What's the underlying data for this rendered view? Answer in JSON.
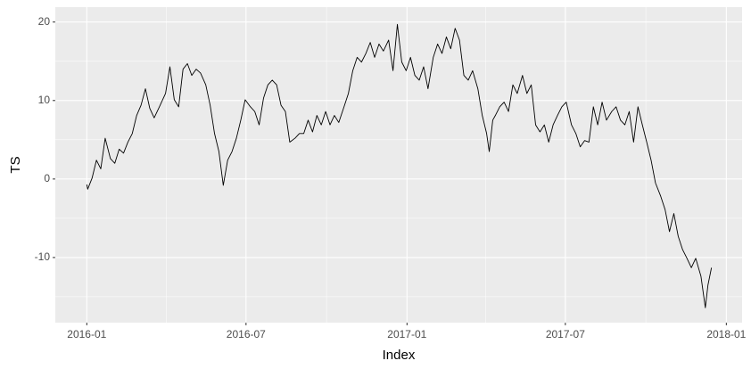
{
  "chart_data": {
    "type": "line",
    "x_label": "Index",
    "y_label": "TS",
    "color": "#000000",
    "grid": true,
    "x": [
      0,
      1,
      6,
      11,
      16,
      21,
      27,
      32,
      37,
      42,
      47,
      52,
      57,
      62,
      67,
      72,
      77,
      83,
      90,
      95,
      100,
      105,
      110,
      115,
      120,
      125,
      130,
      136,
      141,
      146,
      151,
      156,
      161,
      166,
      171,
      176,
      181,
      187,
      192,
      197,
      202,
      207,
      212,
      217,
      222,
      227,
      232,
      238,
      243,
      248,
      253,
      258,
      263,
      268,
      273,
      278,
      283,
      288,
      294,
      299,
      304,
      309,
      314,
      319,
      324,
      329,
      334,
      339,
      345,
      350,
      355,
      360,
      365,
      370,
      375,
      380,
      385,
      390,
      396,
      401,
      406,
      411,
      416,
      421,
      426,
      431,
      436,
      441,
      447,
      452,
      457,
      460,
      464,
      467,
      472,
      477,
      482,
      487,
      492,
      498,
      503,
      508,
      513,
      518,
      523,
      528,
      533,
      538,
      543,
      548,
      554,
      559,
      564,
      569,
      574,
      579,
      584,
      589,
      594,
      600,
      605,
      610,
      615,
      620,
      625,
      630,
      635,
      640,
      645,
      650,
      656,
      661,
      666,
      671,
      676,
      681,
      686,
      691,
      696,
      702,
      707,
      710,
      714
    ],
    "values": [
      -0.7,
      -1.3,
      0.1,
      2.4,
      1.3,
      5.2,
      2.6,
      2.0,
      3.8,
      3.3,
      4.7,
      5.8,
      8.1,
      9.4,
      11.5,
      9.0,
      7.8,
      9.2,
      10.9,
      14.3,
      10.1,
      9.2,
      14.0,
      14.7,
      13.2,
      14.0,
      13.5,
      12.0,
      9.4,
      5.8,
      3.5,
      -0.8,
      2.4,
      3.5,
      5.2,
      7.5,
      10.1,
      9.2,
      8.6,
      6.9,
      10.3,
      12.0,
      12.6,
      12.0,
      9.4,
      8.6,
      4.7,
      5.2,
      5.8,
      5.8,
      7.5,
      6.0,
      8.1,
      6.9,
      8.6,
      6.9,
      8.1,
      7.2,
      9.2,
      10.9,
      13.8,
      15.5,
      14.9,
      16.0,
      17.4,
      15.5,
      17.2,
      16.3,
      17.7,
      13.8,
      19.7,
      14.9,
      13.8,
      15.5,
      13.2,
      12.6,
      14.3,
      11.5,
      15.5,
      17.2,
      16.0,
      18.1,
      16.6,
      19.2,
      17.7,
      13.2,
      12.6,
      13.8,
      11.5,
      8.1,
      5.8,
      3.5,
      7.5,
      8.1,
      9.2,
      9.8,
      8.6,
      12.0,
      10.9,
      13.2,
      10.9,
      12.0,
      6.9,
      6.0,
      6.9,
      4.7,
      6.9,
      8.1,
      9.2,
      9.8,
      6.9,
      5.8,
      4.1,
      4.9,
      4.7,
      9.2,
      6.9,
      9.8,
      7.5,
      8.6,
      9.2,
      7.5,
      6.9,
      8.6,
      4.7,
      9.2,
      6.9,
      4.7,
      2.4,
      -0.5,
      -2.2,
      -3.9,
      -6.7,
      -4.4,
      -7.3,
      -9.0,
      -10.1,
      -11.3,
      -10.1,
      -12.4,
      -16.4,
      -13.5,
      -11.3
    ],
    "xlim": [
      -36,
      749
    ],
    "xticks": [
      {
        "value": 0,
        "label": "2016-01"
      },
      {
        "value": 182,
        "label": "2016-07"
      },
      {
        "value": 366,
        "label": "2017-01"
      },
      {
        "value": 547,
        "label": "2017-07"
      },
      {
        "value": 731,
        "label": "2018-01"
      }
    ],
    "xminor": [
      91,
      274,
      456,
      639
    ],
    "ylim": [
      -18.3,
      21.9
    ],
    "yticks": [
      -10,
      0,
      10,
      20
    ],
    "yminor": [
      -15,
      -5,
      5,
      15
    ]
  }
}
